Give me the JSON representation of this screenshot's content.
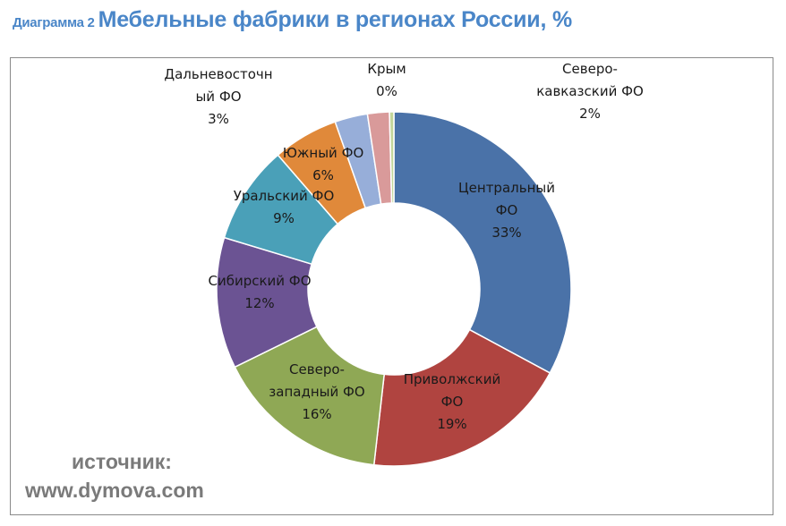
{
  "header": {
    "prefix": "Диаграмма 2",
    "title": "Мебельные фабрики в регионах России, %"
  },
  "source": {
    "line1": "источник:",
    "line2": "www.dymova.com"
  },
  "chart_data": {
    "type": "donut",
    "title": "Мебельные фабрики в регионах России, %",
    "unit": "%",
    "slices": [
      {
        "name": "Центральный ФО",
        "value": 33,
        "label": "33%",
        "label_lines": [
          "Центральный",
          "ФО",
          "33%"
        ],
        "color": "#4a72a8"
      },
      {
        "name": "Приволжский ФО",
        "value": 19,
        "label": "19%",
        "label_lines": [
          "Приволжский",
          "ФО",
          "19%"
        ],
        "color": "#b04440"
      },
      {
        "name": "Северо-западный ФО",
        "value": 16,
        "label": "16%",
        "label_lines": [
          "Северо-",
          "западный ФО",
          "16%"
        ],
        "color": "#8fa855"
      },
      {
        "name": "Сибирский ФО",
        "value": 12,
        "label": "12%",
        "label_lines": [
          "Сибирский ФО",
          "12%"
        ],
        "color": "#6b5393"
      },
      {
        "name": "Уральский ФО",
        "value": 9,
        "label": "9%",
        "label_lines": [
          "Уральский ФО",
          "9%"
        ],
        "color": "#4aa0b8"
      },
      {
        "name": "Южный ФО",
        "value": 6,
        "label": "6%",
        "label_lines": [
          "Южный ФО",
          "6%"
        ],
        "color": "#e0893a"
      },
      {
        "name": "Дальневосточный ФО",
        "value": 3,
        "label": "3%",
        "label_lines": [
          "Дальневосточн",
          "ый ФО",
          "3%"
        ],
        "color": "#97aed9"
      },
      {
        "name": "Северо-кавказский ФО",
        "value": 2,
        "label": "2%",
        "label_lines": [
          "Северо-",
          "кавказский ФО",
          "2%"
        ],
        "color": "#d99a9a"
      },
      {
        "name": "Крым",
        "value": 0.4,
        "label": "0%",
        "label_lines": [
          "Крым",
          "0%"
        ],
        "color": "#c3d69b"
      }
    ],
    "legend": "none"
  }
}
